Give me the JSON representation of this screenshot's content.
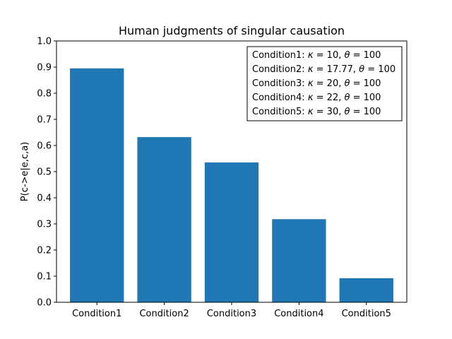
{
  "chart_data": {
    "type": "bar",
    "title": "Human judgments of singular causation",
    "xlabel": "",
    "ylabel": "P(c->e|e,c,a)",
    "categories": [
      "Condition1",
      "Condition2",
      "Condition3",
      "Condition4",
      "Condition5"
    ],
    "values": [
      0.895,
      0.632,
      0.535,
      0.318,
      0.092
    ],
    "ylim": [
      0,
      1.0
    ],
    "yticks": [
      "0.0",
      "0.1",
      "0.2",
      "0.3",
      "0.4",
      "0.5",
      "0.6",
      "0.7",
      "0.8",
      "0.9",
      "1.0"
    ],
    "bar_color": "#1f77b4",
    "grid": false,
    "legend_placement": "top-right",
    "annotation_box": [
      {
        "label": "Condition1: ",
        "kappa": "10",
        "theta": "100"
      },
      {
        "label": "Condition2: ",
        "kappa": "17.77",
        "theta": "100"
      },
      {
        "label": "Condition3: ",
        "kappa": "20",
        "theta": "100"
      },
      {
        "label": "Condition4: ",
        "kappa": "22",
        "theta": "100"
      },
      {
        "label": "Condition5: ",
        "kappa": "30",
        "theta": "100"
      }
    ]
  }
}
